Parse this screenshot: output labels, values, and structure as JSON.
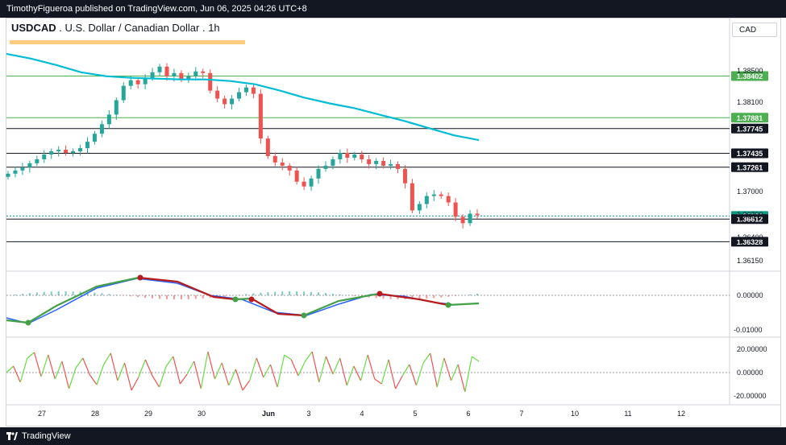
{
  "header": {
    "published": "TimothyFigueroa published on TradingView.com, Jun 06, 2025 04:26 UTC+8"
  },
  "title": {
    "symbol": "USDCAD",
    "description": " . U.S. Dollar / Canadian Dollar . 1h"
  },
  "currency": "CAD",
  "price_axis": {
    "ticks": [
      "1.38500",
      "1.38100",
      "1.37000",
      "1.36150"
    ],
    "partial_ticks": [
      "1.36700",
      "1.36400"
    ]
  },
  "price_labels": [
    {
      "value": "1.38402",
      "style": "green"
    },
    {
      "value": "1.37881",
      "style": "green"
    },
    {
      "value": "1.37745",
      "style": "black"
    },
    {
      "value": "1.37435",
      "style": "black"
    },
    {
      "value": "1.37261",
      "style": "black"
    },
    {
      "value": "1.36651",
      "style": "teal"
    },
    {
      "value": "1.36612",
      "style": "black"
    },
    {
      "value": "1.36328",
      "style": "black"
    }
  ],
  "macd_axis": {
    "ticks": [
      "0.00000",
      "-0.01000"
    ]
  },
  "osc_axis": {
    "ticks": [
      "20.00000",
      "0.00000",
      "-20.00000"
    ]
  },
  "time_axis": {
    "labels": [
      "27",
      "28",
      "29",
      "30",
      "Jun",
      "3",
      "4",
      "5",
      "6",
      "7",
      "10",
      "11",
      "12"
    ]
  },
  "footer": {
    "brand": "TradingView"
  },
  "colors": {
    "up": "#26a69a",
    "down": "#ef5350",
    "ma": "#00bcd4",
    "green_line": "#4caf50",
    "highlight": "#ffcc80",
    "macd_fast": "#2962ff",
    "macd_slow_up": "#43a047",
    "macd_slow_down": "#b71c1c",
    "osc_up": "#66dd44",
    "osc_down": "#ef5350",
    "teal_label": "#089981"
  },
  "chart_data": {
    "type": "candlestick",
    "series": [
      {
        "name": "USDCAD",
        "close": [
          1.3718,
          1.3722,
          1.3726,
          1.3731,
          1.3736,
          1.3742,
          1.3746,
          1.3748,
          1.3744,
          1.3746,
          1.375,
          1.3758,
          1.3768,
          1.378,
          1.3792,
          1.381,
          1.3828,
          1.3835,
          1.383,
          1.3838,
          1.3845,
          1.3852,
          1.384,
          1.3844,
          1.3836,
          1.384,
          1.3846,
          1.3844,
          1.3822,
          1.3812,
          1.3805,
          1.3812,
          1.382,
          1.3826,
          1.3818,
          1.3762,
          1.374,
          1.3732,
          1.3728,
          1.3722,
          1.3708,
          1.3702,
          1.3712,
          1.3724,
          1.3728,
          1.3736,
          1.3744,
          1.3738,
          1.3742,
          1.3736,
          1.373,
          1.3734,
          1.3728,
          1.373,
          1.3724,
          1.3706,
          1.3672,
          1.368,
          1.369,
          1.3692,
          1.369,
          1.3682,
          1.3664,
          1.3656,
          1.3668,
          1.3666
        ]
      }
    ],
    "moving_average": [
      1.3868,
      1.3862,
      1.3854,
      1.3845,
      1.384,
      1.3838,
      1.3837,
      1.3836,
      1.3836,
      1.3834,
      1.383,
      1.3822,
      1.3813,
      1.3806,
      1.38,
      1.3792,
      1.3784,
      1.3775,
      1.3766,
      1.376
    ],
    "horizontal_levels": [
      1.38402,
      1.37881,
      1.37745,
      1.37435,
      1.37261,
      1.36651,
      1.36612,
      1.36328
    ],
    "ylim": [
      1.3605,
      1.3875
    ]
  }
}
